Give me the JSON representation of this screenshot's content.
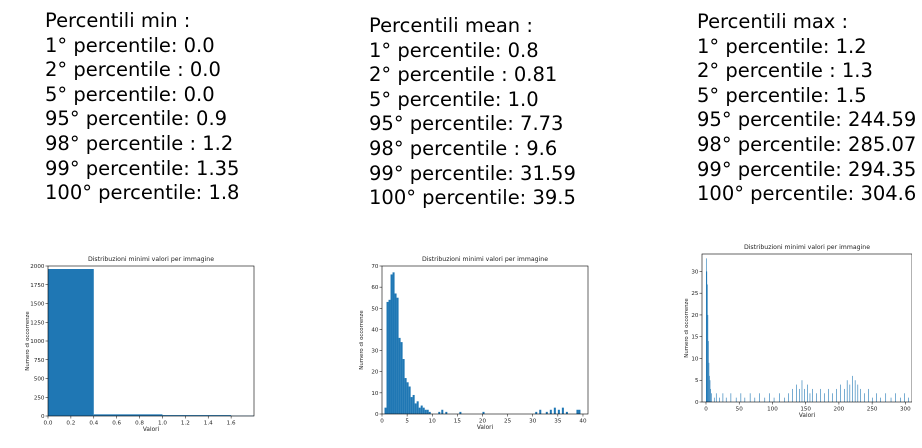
{
  "panels": [
    {
      "heading": "Percentili min :",
      "lines": [
        "1° percentile: 0.0",
        "2° percentile : 0.0",
        "5° percentile: 0.0",
        "95° percentile: 0.9",
        "98° percentile : 1.2",
        "99° percentile: 1.35",
        "100° percentile: 1.8"
      ]
    },
    {
      "heading": "Percentili mean :",
      "lines": [
        "1° percentile: 0.8",
        "2° percentile : 0.81",
        "5° percentile: 1.0",
        "95° percentile: 7.73",
        "98° percentile : 9.6",
        "99° percentile: 31.59",
        "100° percentile: 39.5"
      ]
    },
    {
      "heading": "Percentili max :",
      "lines": [
        "1° percentile: 1.2",
        "2° percentile : 1.3",
        "5° percentile: 1.5",
        "95° percentile: 244.59",
        "98° percentile: 285.07",
        "99° percentile: 294.35",
        "100° percentile: 304.6"
      ]
    }
  ],
  "chart_data": [
    {
      "type": "bar",
      "title": "Distribuzioni minimi valori per immagine",
      "xlabel": "Valori",
      "ylabel": "Numero di occorrenze",
      "xlim": [
        0.0,
        1.8
      ],
      "ylim": [
        0,
        2000
      ],
      "xticks": [
        "0.0",
        "0.2",
        "0.4",
        "0.6",
        "0.8",
        "1.0",
        "1.2",
        "1.4",
        "1.6"
      ],
      "yticks": [
        "0",
        "250",
        "500",
        "750",
        "1000",
        "1250",
        "1500",
        "1750",
        "2000"
      ],
      "color": "#1f77b4",
      "bins": [
        {
          "x0": 0.0,
          "x1": 0.4,
          "count": 1960
        },
        {
          "x0": 0.4,
          "x1": 1.0,
          "count": 22
        },
        {
          "x0": 1.0,
          "x1": 1.6,
          "count": 12
        },
        {
          "x0": 1.6,
          "x1": 1.8,
          "count": 4
        }
      ]
    },
    {
      "type": "bar",
      "title": "Distribuzioni minimi valori per immagine",
      "xlabel": "Valori",
      "ylabel": "Numero di occorrenze",
      "xlim": [
        0,
        41
      ],
      "ylim": [
        0,
        70
      ],
      "xticks": [
        "0",
        "5",
        "10",
        "15",
        "20",
        "25",
        "30",
        "35",
        "40"
      ],
      "yticks": [
        "0",
        "10",
        "20",
        "30",
        "40",
        "50",
        "60",
        "70"
      ],
      "color": "#1f77b4",
      "bins": [
        {
          "x0": 0.5,
          "x1": 0.9,
          "count": 3
        },
        {
          "x0": 0.9,
          "x1": 1.3,
          "count": 53
        },
        {
          "x0": 1.3,
          "x1": 1.7,
          "count": 54
        },
        {
          "x0": 1.7,
          "x1": 2.1,
          "count": 66
        },
        {
          "x0": 2.1,
          "x1": 2.5,
          "count": 67
        },
        {
          "x0": 2.5,
          "x1": 2.9,
          "count": 57
        },
        {
          "x0": 2.9,
          "x1": 3.3,
          "count": 55
        },
        {
          "x0": 3.3,
          "x1": 3.7,
          "count": 36
        },
        {
          "x0": 3.7,
          "x1": 4.1,
          "count": 34
        },
        {
          "x0": 4.1,
          "x1": 4.5,
          "count": 26
        },
        {
          "x0": 4.5,
          "x1": 4.9,
          "count": 17
        },
        {
          "x0": 4.9,
          "x1": 5.3,
          "count": 15
        },
        {
          "x0": 5.3,
          "x1": 5.7,
          "count": 13
        },
        {
          "x0": 5.7,
          "x1": 6.1,
          "count": 8
        },
        {
          "x0": 6.1,
          "x1": 6.5,
          "count": 9
        },
        {
          "x0": 6.5,
          "x1": 6.9,
          "count": 5
        },
        {
          "x0": 6.9,
          "x1": 7.3,
          "count": 6
        },
        {
          "x0": 7.3,
          "x1": 7.7,
          "count": 3
        },
        {
          "x0": 7.7,
          "x1": 8.1,
          "count": 4
        },
        {
          "x0": 8.1,
          "x1": 8.5,
          "count": 3
        },
        {
          "x0": 8.5,
          "x1": 8.9,
          "count": 2
        },
        {
          "x0": 8.9,
          "x1": 9.3,
          "count": 2
        },
        {
          "x0": 9.3,
          "x1": 9.7,
          "count": 1
        },
        {
          "x0": 11.2,
          "x1": 11.6,
          "count": 1
        },
        {
          "x0": 11.8,
          "x1": 12.2,
          "count": 2
        },
        {
          "x0": 12.6,
          "x1": 13.0,
          "count": 1
        },
        {
          "x0": 15.4,
          "x1": 15.8,
          "count": 1
        },
        {
          "x0": 20.0,
          "x1": 20.4,
          "count": 1
        },
        {
          "x0": 30.5,
          "x1": 30.9,
          "count": 1
        },
        {
          "x0": 31.3,
          "x1": 31.7,
          "count": 2
        },
        {
          "x0": 32.6,
          "x1": 33.0,
          "count": 1
        },
        {
          "x0": 33.4,
          "x1": 33.8,
          "count": 2
        },
        {
          "x0": 34.2,
          "x1": 34.6,
          "count": 3
        },
        {
          "x0": 35.0,
          "x1": 35.4,
          "count": 2
        },
        {
          "x0": 35.8,
          "x1": 36.2,
          "count": 3
        },
        {
          "x0": 36.6,
          "x1": 37.0,
          "count": 1
        },
        {
          "x0": 38.7,
          "x1": 39.1,
          "count": 2
        },
        {
          "x0": 39.1,
          "x1": 39.5,
          "count": 2
        }
      ]
    },
    {
      "type": "bar",
      "title": "Distribuzioni minimi valori per immagine",
      "xlabel": "Valori",
      "ylabel": "Numero di occorrenze",
      "xlim": [
        -6,
        310
      ],
      "ylim": [
        0,
        34
      ],
      "xticks": [
        "0",
        "50",
        "100",
        "150",
        "200",
        "250",
        "300"
      ],
      "yticks": [
        "0",
        "5",
        "10",
        "15",
        "20",
        "25",
        "30"
      ],
      "color": "#1f77b4",
      "bins": [
        {
          "x0": 0.0,
          "x1": 0.8,
          "count": 33
        },
        {
          "x0": 0.8,
          "x1": 1.6,
          "count": 30
        },
        {
          "x0": 1.6,
          "x1": 2.4,
          "count": 27
        },
        {
          "x0": 2.4,
          "x1": 3.2,
          "count": 20
        },
        {
          "x0": 3.2,
          "x1": 4.0,
          "count": 14
        },
        {
          "x0": 4.0,
          "x1": 4.8,
          "count": 9
        },
        {
          "x0": 4.8,
          "x1": 5.6,
          "count": 6
        },
        {
          "x0": 5.6,
          "x1": 6.4,
          "count": 5
        },
        {
          "x0": 6.4,
          "x1": 7.2,
          "count": 3
        },
        {
          "x0": 8.0,
          "x1": 8.8,
          "count": 2
        },
        {
          "x0": 12.0,
          "x1": 12.8,
          "count": 1
        },
        {
          "x0": 15.0,
          "x1": 15.8,
          "count": 2
        },
        {
          "x0": 20.0,
          "x1": 20.8,
          "count": 1
        },
        {
          "x0": 25.0,
          "x1": 25.8,
          "count": 2
        },
        {
          "x0": 30.0,
          "x1": 30.8,
          "count": 1
        },
        {
          "x0": 37.0,
          "x1": 37.8,
          "count": 2
        },
        {
          "x0": 45.0,
          "x1": 45.8,
          "count": 1
        },
        {
          "x0": 52.0,
          "x1": 52.8,
          "count": 2
        },
        {
          "x0": 58.0,
          "x1": 58.8,
          "count": 1
        },
        {
          "x0": 66.0,
          "x1": 66.8,
          "count": 2
        },
        {
          "x0": 73.0,
          "x1": 73.8,
          "count": 1
        },
        {
          "x0": 80.0,
          "x1": 80.8,
          "count": 2
        },
        {
          "x0": 88.0,
          "x1": 88.8,
          "count": 1
        },
        {
          "x0": 95.0,
          "x1": 95.8,
          "count": 2
        },
        {
          "x0": 102.0,
          "x1": 102.8,
          "count": 1
        },
        {
          "x0": 110.0,
          "x1": 110.8,
          "count": 2
        },
        {
          "x0": 118.0,
          "x1": 118.8,
          "count": 1
        },
        {
          "x0": 124.0,
          "x1": 124.8,
          "count": 2
        },
        {
          "x0": 130.0,
          "x1": 130.8,
          "count": 3
        },
        {
          "x0": 136.0,
          "x1": 136.8,
          "count": 4
        },
        {
          "x0": 140.0,
          "x1": 140.8,
          "count": 3
        },
        {
          "x0": 144.0,
          "x1": 144.8,
          "count": 5
        },
        {
          "x0": 148.0,
          "x1": 148.8,
          "count": 3
        },
        {
          "x0": 152.0,
          "x1": 152.8,
          "count": 4
        },
        {
          "x0": 156.0,
          "x1": 156.8,
          "count": 2
        },
        {
          "x0": 160.0,
          "x1": 160.8,
          "count": 3
        },
        {
          "x0": 166.0,
          "x1": 166.8,
          "count": 2
        },
        {
          "x0": 172.0,
          "x1": 172.8,
          "count": 3
        },
        {
          "x0": 178.0,
          "x1": 178.8,
          "count": 2
        },
        {
          "x0": 184.0,
          "x1": 184.8,
          "count": 3
        },
        {
          "x0": 190.0,
          "x1": 190.8,
          "count": 2
        },
        {
          "x0": 196.0,
          "x1": 196.8,
          "count": 3
        },
        {
          "x0": 202.0,
          "x1": 202.8,
          "count": 4
        },
        {
          "x0": 208.0,
          "x1": 208.8,
          "count": 3
        },
        {
          "x0": 212.0,
          "x1": 212.8,
          "count": 5
        },
        {
          "x0": 216.0,
          "x1": 216.8,
          "count": 4
        },
        {
          "x0": 220.0,
          "x1": 220.8,
          "count": 6
        },
        {
          "x0": 224.0,
          "x1": 224.8,
          "count": 5
        },
        {
          "x0": 228.0,
          "x1": 228.8,
          "count": 4
        },
        {
          "x0": 232.0,
          "x1": 232.8,
          "count": 3
        },
        {
          "x0": 238.0,
          "x1": 238.8,
          "count": 2
        },
        {
          "x0": 244.0,
          "x1": 244.8,
          "count": 3
        },
        {
          "x0": 250.0,
          "x1": 250.8,
          "count": 1
        },
        {
          "x0": 256.0,
          "x1": 256.8,
          "count": 2
        },
        {
          "x0": 262.0,
          "x1": 262.8,
          "count": 1
        },
        {
          "x0": 270.0,
          "x1": 270.8,
          "count": 2
        },
        {
          "x0": 278.0,
          "x1": 278.8,
          "count": 1
        },
        {
          "x0": 285.0,
          "x1": 285.8,
          "count": 2
        },
        {
          "x0": 292.0,
          "x1": 292.8,
          "count": 1
        },
        {
          "x0": 298.0,
          "x1": 298.8,
          "count": 2
        },
        {
          "x0": 304.0,
          "x1": 304.8,
          "count": 1
        }
      ]
    }
  ]
}
